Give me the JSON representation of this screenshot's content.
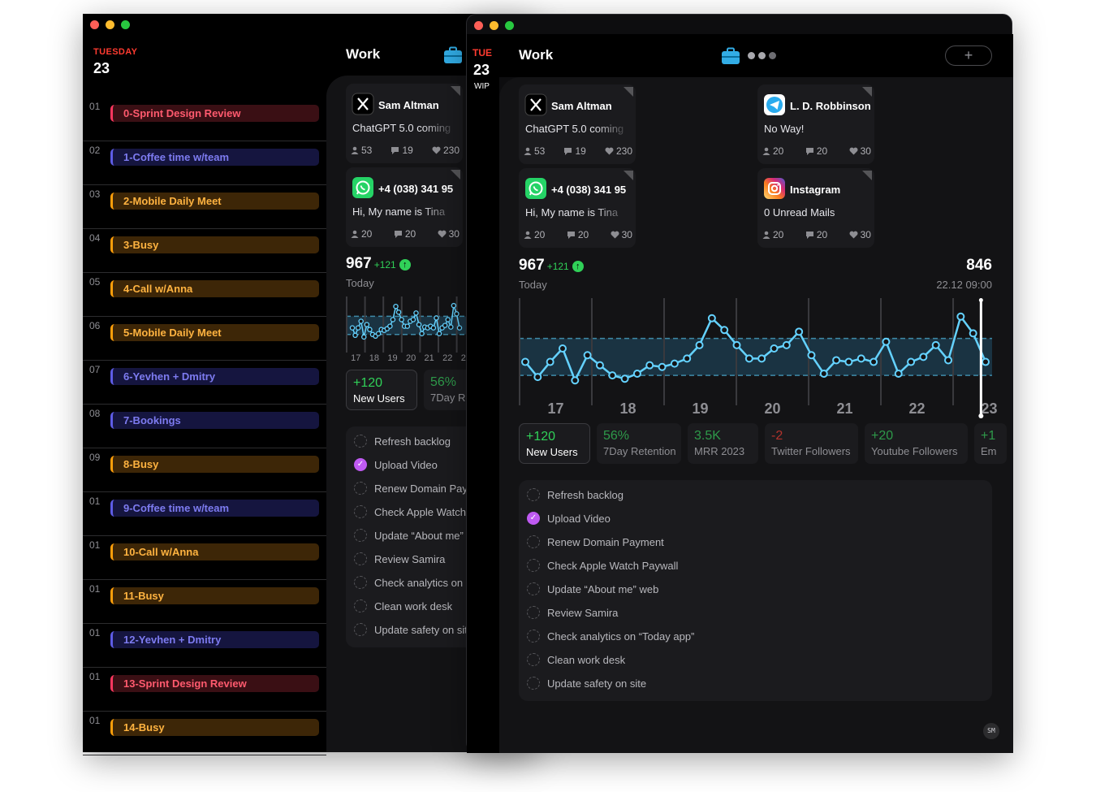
{
  "calendar": {
    "day": "TUESDAY",
    "date": "23",
    "rows": [
      {
        "hour": "01",
        "title": "0-Sprint Design Review",
        "color": "red"
      },
      {
        "hour": "02",
        "title": "1-Coffee time w/team",
        "color": "blue"
      },
      {
        "hour": "03",
        "title": "2-Mobile Daily Meet",
        "color": "orange"
      },
      {
        "hour": "04",
        "title": "3-Busy",
        "color": "orange"
      },
      {
        "hour": "05",
        "title": "4-Call w/Anna",
        "color": "orange"
      },
      {
        "hour": "06",
        "title": "5-Mobile Daily Meet",
        "color": "orange"
      },
      {
        "hour": "07",
        "title": "6-Yevhen + Dmitry",
        "color": "blue"
      },
      {
        "hour": "08",
        "title": "7-Bookings",
        "color": "blue"
      },
      {
        "hour": "09",
        "title": "8-Busy",
        "color": "orange"
      },
      {
        "hour": "01",
        "title": "9-Coffee time w/team",
        "color": "blue"
      },
      {
        "hour": "01",
        "title": "10-Call w/Anna",
        "color": "orange"
      },
      {
        "hour": "01",
        "title": "11-Busy",
        "color": "orange"
      },
      {
        "hour": "01",
        "title": "12-Yevhen + Dmitry",
        "color": "blue"
      },
      {
        "hour": "01",
        "title": "13-Sprint Design Review",
        "color": "red"
      },
      {
        "hour": "01",
        "title": "14-Busy",
        "color": "orange"
      }
    ]
  },
  "sidebar": {
    "day": "TUE",
    "date": "23",
    "tag": "WIP"
  },
  "header": {
    "title": "Work",
    "add_label": "+"
  },
  "cards": [
    {
      "app": "x-icon",
      "name": "Sam Altman",
      "message": "ChatGPT 5.0 coming",
      "people": "53",
      "comments": "19",
      "likes": "230"
    },
    {
      "app": "whatsapp-icon",
      "name": "+4 (038) 341 95",
      "message": "Hi, My name is Tina",
      "people": "20",
      "comments": "20",
      "likes": "30"
    },
    {
      "app": "telegram-icon",
      "name": "L. D. Robbinson",
      "message": "No Way!",
      "people": "20",
      "comments": "20",
      "likes": "30"
    },
    {
      "app": "instagram-icon",
      "name": "Instagram",
      "message": "0 Unread Mails",
      "people": "20",
      "comments": "20",
      "likes": "30"
    }
  ],
  "stats": {
    "main_value": "967",
    "main_delta": "+121",
    "main_label": "Today",
    "cursor_value": "846",
    "cursor_time": "22.12 09:00"
  },
  "chart_data": {
    "type": "line",
    "x_labels": [
      "17",
      "18",
      "19",
      "20",
      "21",
      "22",
      "23"
    ],
    "values": [
      42,
      33,
      42,
      50,
      31,
      46,
      40,
      34,
      32,
      35,
      40,
      39,
      41,
      44,
      52,
      68,
      61,
      52,
      44,
      44,
      50,
      52,
      60,
      46,
      35,
      43,
      42,
      44,
      42,
      54,
      35,
      42,
      45,
      52,
      43,
      69,
      59,
      42
    ],
    "band": [
      34,
      56
    ],
    "ylim": [
      20,
      80
    ],
    "cursor_x": "22.12 09:00",
    "cursor_value": 846
  },
  "metrics": [
    {
      "value": "+120",
      "label": "New Users",
      "color": "#30d158",
      "selected": true
    },
    {
      "value": "56%",
      "label": "7Day Retention",
      "color": "#2e9a4a"
    },
    {
      "value": "3.5K",
      "label": "MRR 2023",
      "color": "#2e9a4a"
    },
    {
      "value": "-2",
      "label": "Twitter Followers",
      "color": "#b3332c"
    },
    {
      "value": "+20",
      "label": "Youtube Followers",
      "color": "#2e9a4a"
    },
    {
      "value": "+1",
      "label": "Em",
      "color": "#2e9a4a"
    }
  ],
  "todos": [
    {
      "text": "Refresh backlog",
      "done": false
    },
    {
      "text": "Upload Video",
      "done": true
    },
    {
      "text": "Renew Domain Payment",
      "done": false
    },
    {
      "text": "Check Apple Watch Paywall",
      "done": false
    },
    {
      "text": "Update “About me” web",
      "done": false
    },
    {
      "text": "Review Samira",
      "done": false
    },
    {
      "text": "Check analytics on “Today app”",
      "done": false
    },
    {
      "text": "Clean work desk",
      "done": false
    },
    {
      "text": "Update safety on site",
      "done": false
    }
  ],
  "user": {
    "initials": "SM"
  },
  "colors": {
    "accent_green": "#30d158",
    "line": "#64d2ff",
    "red": "#ff3b30",
    "purple": "#bf5af2"
  }
}
